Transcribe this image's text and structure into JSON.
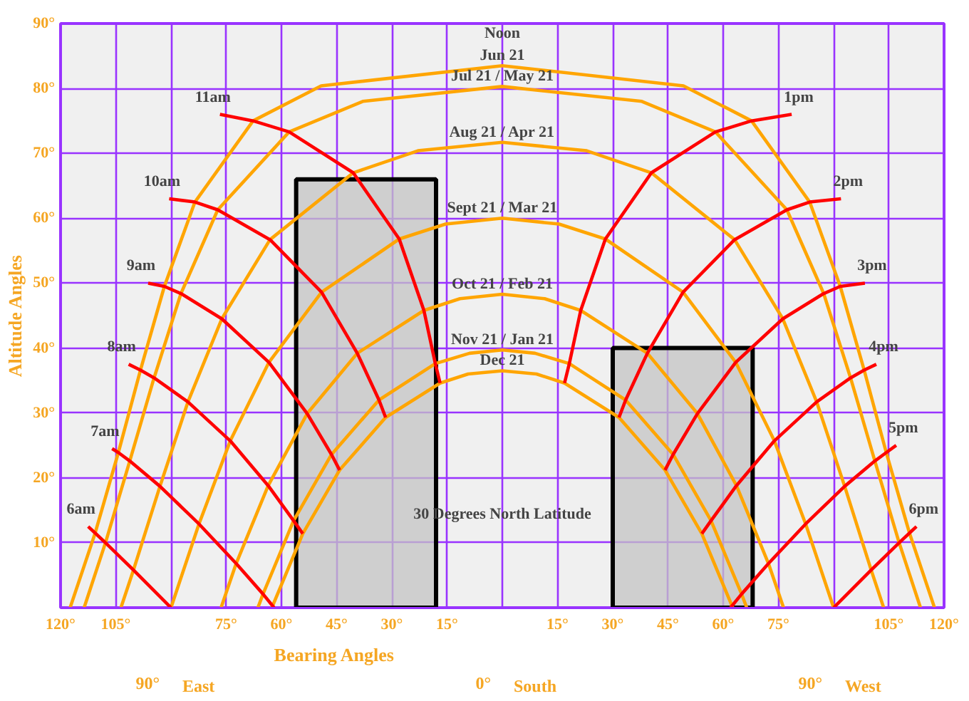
{
  "chart_data": {
    "type": "line",
    "ylabel": "Altitude Angles",
    "xlabel": "Bearing Angles",
    "xlim": [
      -120,
      120
    ],
    "ylim": [
      0,
      90
    ],
    "xticks": [
      {
        "value": -120,
        "label": "120°"
      },
      {
        "value": -105,
        "label": "105°"
      },
      {
        "value": -90,
        "label": null
      },
      {
        "value": -75,
        "label": "75°"
      },
      {
        "value": -60,
        "label": "60°"
      },
      {
        "value": -45,
        "label": "45°"
      },
      {
        "value": -30,
        "label": "30°"
      },
      {
        "value": -15,
        "label": "15°"
      },
      {
        "value": 0,
        "label": null
      },
      {
        "value": 15,
        "label": "15°"
      },
      {
        "value": 30,
        "label": "30°"
      },
      {
        "value": 45,
        "label": "45°"
      },
      {
        "value": 60,
        "label": "60°"
      },
      {
        "value": 75,
        "label": "75°"
      },
      {
        "value": 90,
        "label": null
      },
      {
        "value": 105,
        "label": "105°"
      },
      {
        "value": 120,
        "label": "120°"
      }
    ],
    "yticks": [
      {
        "value": 0,
        "label": null
      },
      {
        "value": 10,
        "label": "10°"
      },
      {
        "value": 20,
        "label": "20°"
      },
      {
        "value": 30,
        "label": "30°"
      },
      {
        "value": 40,
        "label": "40°"
      },
      {
        "value": 50,
        "label": "50°"
      },
      {
        "value": 60,
        "label": "60°"
      },
      {
        "value": 70,
        "label": "70°"
      },
      {
        "value": 80,
        "label": "80°"
      },
      {
        "value": 90,
        "label": "90°"
      }
    ],
    "grid": true,
    "series": [
      {
        "type": "area",
        "color": "#c4c4c4",
        "x": [
          -56,
          -18
        ],
        "values": [
          66,
          66
        ]
      },
      {
        "type": "area",
        "color": "#c4c4c4",
        "x": [
          30,
          68
        ],
        "values": [
          40,
          40
        ]
      },
      {
        "name": "Jun 21",
        "color": "#ffa500",
        "x": [
          -117.4,
          -110.6,
          -104.3,
          -98.3,
          -91.8,
          -83.5,
          -67.7,
          -49.2,
          0,
          49.2,
          67.7,
          83.5,
          91.8,
          98.3,
          104.3,
          110.6,
          117.4
        ],
        "values": [
          0,
          11.5,
          23.9,
          36.6,
          49.5,
          62.5,
          75,
          80.4,
          83.5,
          80.4,
          75,
          62.5,
          49.5,
          36.6,
          23.9,
          11.5,
          0
        ]
      },
      {
        "name": "Jul 21 / May 21",
        "color": "#ffa500",
        "x": [
          -113.6,
          -107.8,
          -101.2,
          -94.6,
          -87.3,
          -77.3,
          -57.9,
          -37.9,
          0,
          37.9,
          57.9,
          77.3,
          87.3,
          94.6,
          101.2,
          107.8,
          113.6
        ],
        "values": [
          0,
          10,
          22.6,
          35.4,
          48.4,
          61.3,
          73.3,
          78,
          80.3,
          78,
          73.3,
          61.3,
          48.4,
          35.4,
          22.6,
          10,
          0
        ]
      },
      {
        "name": "Aug 21 / Apr 21",
        "color": "#ffa500",
        "x": [
          -103.6,
          -100.2,
          -93,
          -85.4,
          -76.2,
          -63.1,
          -40.5,
          -22.9,
          0,
          22.9,
          40.5,
          63.1,
          76.2,
          85.4,
          93,
          100.2,
          103.6
        ],
        "values": [
          0,
          5.8,
          18.7,
          31.7,
          44.5,
          56.7,
          67,
          70.4,
          71.7,
          70.4,
          67,
          56.7,
          44.5,
          31.7,
          18.7,
          5.8,
          0
        ]
      },
      {
        "name": "Sept 21 / Mar 21",
        "color": "#ffa500",
        "x": [
          -90,
          -82.4,
          -73.9,
          -63.4,
          -49.1,
          -28,
          -15.4,
          0,
          15.4,
          28,
          49.1,
          63.4,
          73.9,
          82.4,
          90
        ],
        "values": [
          0,
          12.9,
          25.7,
          37.8,
          48.6,
          56.8,
          59.1,
          60,
          59.1,
          56.8,
          48.6,
          37.8,
          25.7,
          12.9,
          0
        ]
      },
      {
        "name": "Oct 21 / Feb 21",
        "color": "#ffa500",
        "x": [
          -76.4,
          -72.3,
          -63.6,
          -53,
          -39.4,
          -21.3,
          -11.5,
          0,
          11.5,
          21.3,
          39.4,
          53,
          63.6,
          72.3,
          76.4
        ],
        "values": [
          0,
          6.8,
          18.8,
          29.9,
          39.2,
          45.8,
          47.6,
          48.3,
          47.6,
          45.8,
          39.2,
          29.9,
          18.8,
          6.8,
          0
        ]
      },
      {
        "name": "Nov 21 / Jan 21",
        "color": "#ffa500",
        "x": [
          -66.4,
          -65,
          -56.7,
          -46.4,
          -33.5,
          -18.2,
          -8.9,
          0,
          8.9,
          18.2,
          33.5,
          46.4,
          56.7,
          65,
          66.4
        ],
        "values": [
          0,
          2.1,
          13.4,
          23.6,
          32,
          37.6,
          39.2,
          39.7,
          39.2,
          37.6,
          32,
          23.6,
          13.4,
          2.1,
          0
        ]
      },
      {
        "name": "Dec 21",
        "color": "#ffa500",
        "x": [
          -62.6,
          -54.2,
          -44.2,
          -31.7,
          -16.9,
          -9.3,
          0,
          9.3,
          16.9,
          31.7,
          44.2,
          54.2,
          62.6
        ],
        "values": [
          0,
          11.4,
          21.2,
          29.3,
          34.6,
          36,
          36.5,
          36,
          34.6,
          29.3,
          21.2,
          11.4,
          0
        ]
      },
      {
        "name": "11am",
        "color": "#ff0000",
        "x": [
          -76.7,
          -67.7,
          -57.9,
          -40.5,
          -28,
          -21.3,
          -18.2,
          -16.9
        ],
        "values": [
          76,
          75,
          73.3,
          67,
          56.8,
          45.8,
          37.6,
          34.6
        ]
      },
      {
        "name": "10am",
        "color": "#ff0000",
        "x": [
          -90.5,
          -83.5,
          -77.3,
          -63.1,
          -49.1,
          -39.4,
          -33.5,
          -31.7
        ],
        "values": [
          63,
          62.5,
          61.3,
          56.7,
          48.6,
          39.2,
          32,
          29.3
        ]
      },
      {
        "name": "9am",
        "color": "#ff0000",
        "x": [
          -96.2,
          -91.8,
          -87.3,
          -76.2,
          -63.4,
          -53,
          -46.4,
          -44.2
        ],
        "values": [
          50,
          49.5,
          48.4,
          44.5,
          37.8,
          29.9,
          23.6,
          21.2
        ]
      },
      {
        "name": "8am",
        "color": "#ff0000",
        "x": [
          -101.5,
          -98.3,
          -94.6,
          -85.4,
          -73.9,
          -63.6,
          -56.7,
          -54.2
        ],
        "values": [
          37.5,
          36.6,
          35.4,
          31.7,
          25.7,
          18.8,
          13.4,
          11.4
        ]
      },
      {
        "name": "7am",
        "color": "#ff0000",
        "x": [
          -106,
          -104.3,
          -101.2,
          -93,
          -82.4,
          -72.3,
          -65,
          -62
        ],
        "values": [
          24.5,
          23.9,
          22.6,
          18.7,
          12.9,
          6.8,
          2.1,
          0
        ]
      },
      {
        "name": "6am",
        "color": "#ff0000",
        "x": [
          -112.5,
          -110.6,
          -107.8,
          -100.2,
          -90
        ],
        "values": [
          12.5,
          11.5,
          10,
          5.8,
          0
        ]
      },
      {
        "name": "1pm",
        "color": "#ff0000",
        "x": [
          16.9,
          18.2,
          21.3,
          28,
          40.5,
          57.9,
          67.7,
          78.6
        ],
        "values": [
          34.6,
          37.6,
          45.8,
          56.8,
          67,
          73.3,
          75,
          76
        ]
      },
      {
        "name": "2pm",
        "color": "#ff0000",
        "x": [
          31.7,
          33.5,
          39.4,
          49.1,
          63.1,
          77.3,
          83.5,
          92
        ],
        "values": [
          29.3,
          32,
          39.2,
          48.6,
          56.7,
          61.3,
          62.5,
          63
        ]
      },
      {
        "name": "3pm",
        "color": "#ff0000",
        "x": [
          44.2,
          46.4,
          53,
          63.4,
          76.2,
          87.3,
          91.8,
          98.5
        ],
        "values": [
          21.2,
          23.6,
          29.9,
          37.8,
          44.5,
          48.4,
          49.5,
          50
        ]
      },
      {
        "name": "4pm",
        "color": "#ff0000",
        "x": [
          54.2,
          56.7,
          63.6,
          73.9,
          85.4,
          94.6,
          98.3,
          101.6
        ],
        "values": [
          11.4,
          13.4,
          18.8,
          25.7,
          31.7,
          35.4,
          36.6,
          37.5
        ]
      },
      {
        "name": "5pm",
        "color": "#ff0000",
        "x": [
          62,
          65,
          72.3,
          82.4,
          93,
          101.2,
          104.3,
          107
        ],
        "values": [
          0,
          2.1,
          6.8,
          12.9,
          18.7,
          22.6,
          23.9,
          25
        ]
      },
      {
        "name": "6pm",
        "color": "#ff0000",
        "x": [
          90,
          100.2,
          107.8,
          110.6,
          112.5
        ],
        "values": [
          0,
          5.8,
          10,
          11.5,
          12.5
        ]
      }
    ],
    "annotations": [
      "Noon",
      "30 Degrees North Latitude",
      "90°",
      "East",
      "0°",
      "South",
      "90°",
      "West"
    ]
  }
}
